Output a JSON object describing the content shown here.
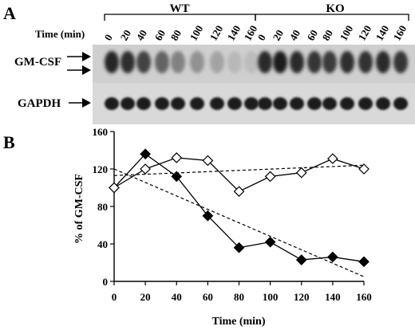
{
  "panel_a": {
    "label": "A",
    "groups": [
      "WT",
      "KO"
    ],
    "time_label": "Time (min)",
    "lanes": {
      "WT": [
        "0",
        "20",
        "40",
        "60",
        "80",
        "100",
        "120",
        "140",
        "160"
      ],
      "KO": [
        "0",
        "20",
        "40",
        "60",
        "80",
        "100",
        "120",
        "140",
        "160"
      ]
    },
    "rows": [
      "GM-CSF",
      "GAPDH"
    ],
    "band_intensity": {
      "GM-CSF": {
        "WT": [
          0.92,
          0.88,
          0.78,
          0.62,
          0.48,
          0.4,
          0.32,
          0.22,
          0.2
        ],
        "KO": [
          0.9,
          0.95,
          0.9,
          0.85,
          0.82,
          0.88,
          0.86,
          0.9,
          0.85
        ]
      },
      "GAPDH": {
        "WT": [
          0.95,
          0.95,
          0.95,
          0.95,
          0.95,
          0.95,
          0.95,
          0.95,
          0.95
        ],
        "KO": [
          0.95,
          0.95,
          0.95,
          0.95,
          0.95,
          0.95,
          0.95,
          0.95,
          0.95
        ]
      }
    }
  },
  "panel_b": {
    "label": "B"
  },
  "chart_data": {
    "type": "line",
    "xlabel": "Time (min)",
    "ylabel": "% of GM-CSF",
    "xlim": [
      0,
      160
    ],
    "ylim": [
      0,
      160
    ],
    "xticks": [
      0,
      20,
      40,
      60,
      80,
      100,
      120,
      140,
      160
    ],
    "yticks": [
      0,
      40,
      80,
      120,
      160
    ],
    "grid": false,
    "series": [
      {
        "marker": "filled-diamond",
        "x": [
          0,
          20,
          40,
          60,
          80,
          100,
          120,
          140,
          160
        ],
        "values": [
          100,
          136,
          112,
          70,
          36,
          42,
          23,
          26,
          21
        ]
      },
      {
        "marker": "open-diamond",
        "x": [
          0,
          20,
          40,
          60,
          80,
          100,
          120,
          140,
          160
        ],
        "values": [
          100,
          120,
          132,
          129,
          96,
          112,
          116,
          131,
          120
        ]
      }
    ],
    "trendlines": [
      {
        "style": "dashed",
        "x": [
          0,
          160
        ],
        "values": [
          120,
          5
        ]
      },
      {
        "style": "dashed",
        "x": [
          0,
          160
        ],
        "values": [
          113,
          124
        ]
      }
    ]
  }
}
